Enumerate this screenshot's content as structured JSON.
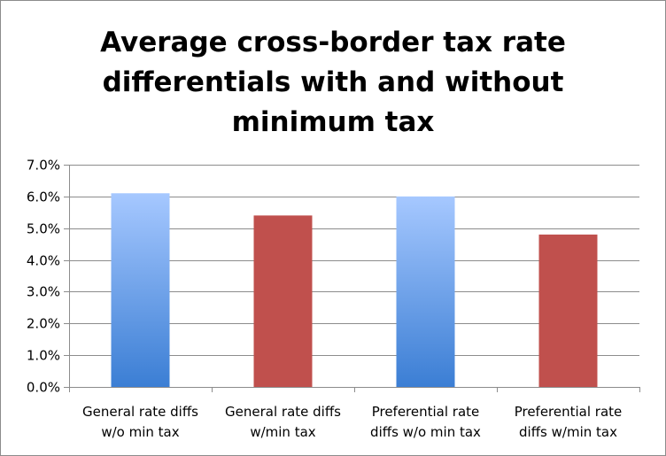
{
  "chart_data": {
    "type": "bar",
    "title_lines": [
      "Average cross-border tax rate",
      "differentials with and without",
      "minimum tax"
    ],
    "categories": [
      [
        "General rate diffs",
        "w/o min tax"
      ],
      [
        "General rate diffs",
        "w/min tax"
      ],
      [
        "Preferential rate",
        "diffs w/o min tax"
      ],
      [
        "Preferential rate",
        "diffs w/min tax"
      ]
    ],
    "values": [
      0.061,
      0.054,
      0.06,
      0.048
    ],
    "bar_styles": [
      "blue-gradient",
      "red",
      "blue-gradient",
      "red"
    ],
    "ylim": [
      0,
      0.07
    ],
    "yticks": [
      0,
      0.01,
      0.02,
      0.03,
      0.04,
      0.05,
      0.06,
      0.07
    ],
    "ytick_labels": [
      "0.0%",
      "1.0%",
      "2.0%",
      "3.0%",
      "4.0%",
      "5.0%",
      "6.0%",
      "7.0%"
    ],
    "grid": true,
    "legend": "none",
    "colors": {
      "red": "#c0504d",
      "blue_top": "#a6c8ff",
      "blue_bottom": "#3b7ed4",
      "grid": "#8c8c8c",
      "axis": "#8c8c8c"
    }
  }
}
